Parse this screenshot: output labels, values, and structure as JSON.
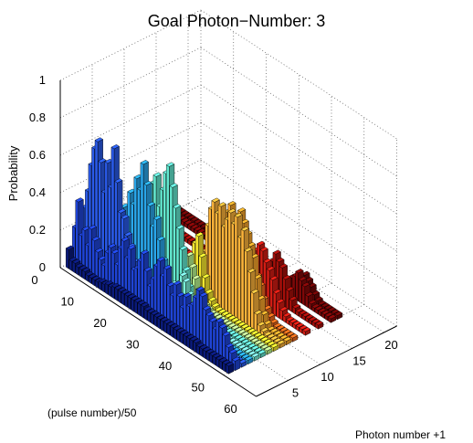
{
  "chart_data": {
    "type": "bar3d",
    "title": "Goal Photon−Number: 3",
    "xlabel": "(pulse number)/50",
    "ylabel": "Photon number +1",
    "zlabel": "Probability",
    "x_ticks": [
      "0",
      "10",
      "20",
      "30",
      "40",
      "50",
      "60"
    ],
    "y_ticks": [
      "5",
      "10",
      "15",
      "20"
    ],
    "z_ticks": [
      "0",
      "0.2",
      "0.4",
      "0.6",
      "0.8",
      "1"
    ],
    "xlim": [
      0,
      60
    ],
    "ylim": [
      0,
      22
    ],
    "zlim": [
      0,
      1
    ],
    "grid": true,
    "colormap": "jet",
    "series": [
      {
        "photon_number_plus_1": 1,
        "color": "#0a1a7a",
        "values": [
          0.1,
          0.05,
          0.05,
          0.04,
          0.04,
          0.04,
          0.03,
          0.03,
          0.03,
          0.03,
          0.04,
          0.04,
          0.05,
          0.05,
          0.06,
          0.06,
          0.06,
          0.06,
          0.06,
          0.06,
          0.06,
          0.06,
          0.06,
          0.06,
          0.05,
          0.05,
          0.05,
          0.05,
          0.05,
          0.05,
          0.05,
          0.05,
          0.05,
          0.05,
          0.05,
          0.05,
          0.05,
          0.05,
          0.05,
          0.05,
          0.04,
          0.04,
          0.04,
          0.04,
          0.04,
          0.04,
          0.04,
          0.04,
          0.04,
          0.04
        ]
      },
      {
        "photon_number_plus_1": 2,
        "color": "#1f44d6",
        "values": [
          0.2,
          0.35,
          0.18,
          0.22,
          0.15,
          0.25,
          0.2,
          0.15,
          0.12,
          0.1,
          0.18,
          0.22,
          0.2,
          0.15,
          0.25,
          0.3,
          0.22,
          0.28,
          0.18,
          0.2,
          0.25,
          0.3,
          0.22,
          0.15,
          0.2,
          0.28,
          0.32,
          0.25,
          0.3,
          0.22,
          0.18,
          0.25,
          0.2,
          0.15,
          0.22,
          0.18,
          0.2,
          0.25,
          0.3,
          0.28,
          0.22,
          0.2,
          0.18,
          0.15,
          0.2,
          0.18,
          0.15,
          0.1,
          0.08,
          0.05
        ]
      },
      {
        "photon_number_plus_1": 3,
        "color": "#2a5ae8",
        "values": [
          0.25,
          0.3,
          0.4,
          0.55,
          0.65,
          0.7,
          0.6,
          0.45,
          0.62,
          0.5,
          0.72,
          0.55,
          0.4,
          0.38,
          0.3,
          0.25,
          0.18,
          0.12,
          0.1,
          0.08,
          0.06,
          0.05,
          0.04,
          0.03,
          0.03,
          0.02,
          0.02,
          0.02,
          0.02,
          0.02,
          0.02,
          0.02,
          0.02,
          0.02,
          0.02,
          0.02,
          0.02,
          0.02,
          0.02,
          0.02,
          0.02,
          0.02,
          0.02,
          0.02,
          0.02,
          0.02,
          0.02,
          0.02,
          0.02,
          0.02
        ]
      },
      {
        "photon_number_plus_1": 4,
        "color": "#2aa6ea",
        "values": [
          0.02,
          0.02,
          0.03,
          0.05,
          0.08,
          0.1,
          0.12,
          0.18,
          0.2,
          0.25,
          0.3,
          0.4,
          0.35,
          0.5,
          0.45,
          0.6,
          0.55,
          0.7,
          0.6,
          0.5,
          0.4,
          0.45,
          0.35,
          0.25,
          0.15,
          0.1,
          0.05,
          0.03,
          0.02,
          0.02,
          0.02,
          0.02,
          0.02,
          0.02,
          0.02,
          0.02,
          0.02,
          0.02,
          0.02,
          0.02,
          0.02,
          0.02,
          0.02,
          0.02,
          0.02,
          0.02,
          0.02,
          0.02,
          0.02,
          0.02
        ]
      },
      {
        "photon_number_plus_1": 5,
        "color": "#7af0d8",
        "values": [
          0.02,
          0.02,
          0.02,
          0.02,
          0.02,
          0.02,
          0.02,
          0.02,
          0.02,
          0.02,
          0.02,
          0.02,
          0.02,
          0.02,
          0.02,
          0.02,
          0.02,
          0.02,
          0.02,
          0.02,
          0.03,
          0.04,
          0.05,
          0.08,
          0.12,
          0.1,
          0.15,
          0.2,
          0.18,
          0.12,
          0.08,
          0.05,
          0.03,
          0.02,
          0.02,
          0.02,
          0.02,
          0.02,
          0.02,
          0.02,
          0.02,
          0.02,
          0.02,
          0.02,
          0.02,
          0.02,
          0.02,
          0.02,
          0.02,
          0.02
        ]
      },
      {
        "photon_number_plus_1": 6,
        "color": "#63e8cf",
        "values": [
          0.02,
          0.02,
          0.02,
          0.02,
          0.02,
          0.02,
          0.02,
          0.02,
          0.02,
          0.02,
          0.03,
          0.05,
          0.1,
          0.2,
          0.35,
          0.5,
          0.55,
          0.6,
          0.45,
          0.55,
          0.65,
          0.7,
          0.6,
          0.5,
          0.4,
          0.3,
          0.2,
          0.12,
          0.05,
          0.03,
          0.02,
          0.02,
          0.02,
          0.02,
          0.02,
          0.02,
          0.02,
          0.02,
          0.02,
          0.02,
          0.02,
          0.02,
          0.02,
          0.02,
          0.02,
          0.02,
          0.02,
          0.02,
          0.02,
          0.02
        ]
      },
      {
        "photon_number_plus_1": 7,
        "color": "#b8f58f",
        "values": [
          0.02,
          0.02,
          0.02,
          0.02,
          0.02,
          0.02,
          0.02,
          0.02,
          0.02,
          0.02,
          0.02,
          0.02,
          0.02,
          0.02,
          0.02,
          0.02,
          0.02,
          0.02,
          0.02,
          0.02,
          0.03,
          0.05,
          0.08,
          0.12,
          0.2,
          0.25,
          0.2,
          0.15,
          0.1,
          0.06,
          0.04,
          0.03,
          0.02,
          0.02,
          0.02,
          0.02,
          0.02,
          0.02,
          0.02,
          0.02,
          0.02,
          0.02,
          0.02,
          0.02,
          0.02,
          0.02,
          0.02,
          0.02,
          0.02,
          0.02
        ]
      },
      {
        "photon_number_plus_1": 8,
        "color": "#f7e82e",
        "values": [
          0.02,
          0.02,
          0.02,
          0.02,
          0.02,
          0.02,
          0.02,
          0.02,
          0.02,
          0.02,
          0.02,
          0.02,
          0.02,
          0.02,
          0.02,
          0.02,
          0.02,
          0.02,
          0.02,
          0.02,
          0.02,
          0.03,
          0.05,
          0.1,
          0.2,
          0.3,
          0.35,
          0.25,
          0.15,
          0.08,
          0.05,
          0.03,
          0.02,
          0.02,
          0.02,
          0.02,
          0.02,
          0.02,
          0.02,
          0.02,
          0.02,
          0.02,
          0.02,
          0.02,
          0.02,
          0.02,
          0.02,
          0.02,
          0.02,
          0.02
        ]
      },
      {
        "photon_number_plus_1": 9,
        "color": "#fbb33a",
        "values": [
          0.02,
          0.02,
          0.02,
          0.02,
          0.02,
          0.02,
          0.02,
          0.02,
          0.02,
          0.02,
          0.02,
          0.02,
          0.02,
          0.02,
          0.02,
          0.02,
          0.02,
          0.02,
          0.02,
          0.02,
          0.02,
          0.02,
          0.02,
          0.03,
          0.05,
          0.1,
          0.25,
          0.4,
          0.5,
          0.55,
          0.5,
          0.55,
          0.45,
          0.5,
          0.55,
          0.5,
          0.55,
          0.45,
          0.5,
          0.4,
          0.3,
          0.2,
          0.1,
          0.05,
          0.03,
          0.02,
          0.02,
          0.02,
          0.02,
          0.02
        ]
      },
      {
        "photon_number_plus_1": 10,
        "color": "#f7a52b",
        "values": [
          0.02,
          0.02,
          0.02,
          0.02,
          0.02,
          0.02,
          0.02,
          0.02,
          0.02,
          0.02,
          0.02,
          0.02,
          0.02,
          0.02,
          0.02,
          0.02,
          0.02,
          0.02,
          0.02,
          0.02,
          0.02,
          0.02,
          0.02,
          0.02,
          0.03,
          0.05,
          0.1,
          0.2,
          0.3,
          0.4,
          0.45,
          0.5,
          0.55,
          0.5,
          0.45,
          0.55,
          0.5,
          0.45,
          0.4,
          0.35,
          0.25,
          0.15,
          0.08,
          0.04,
          0.02,
          0.02,
          0.02,
          0.02,
          0.02,
          0.02
        ]
      },
      {
        "photon_number_plus_1": 11,
        "color": "#ee6a1d",
        "values": [
          0.02,
          0.02,
          0.02,
          0.02,
          0.02,
          0.02,
          0.02,
          0.02,
          0.02,
          0.02,
          0.02,
          0.02,
          0.02,
          0.02,
          0.02,
          0.02,
          0.02,
          0.02,
          0.02,
          0.02,
          0.02,
          0.02,
          0.02,
          0.02,
          0.02,
          0.02,
          0.03,
          0.05,
          0.08,
          0.12,
          0.18,
          0.22,
          0.25,
          0.3,
          0.28,
          0.25,
          0.3,
          0.28,
          0.22,
          0.18,
          0.12,
          0.08,
          0.05,
          0.03,
          0.02,
          0.02,
          0.02,
          0.02,
          0.02,
          0.02
        ]
      },
      {
        "photon_number_plus_1": 13,
        "color": "#d21d14",
        "values": [
          0.02,
          0.02,
          0.02,
          0.02,
          0.02,
          0.02,
          0.02,
          0.02,
          0.02,
          0.02,
          0.02,
          0.02,
          0.02,
          0.02,
          0.02,
          0.02,
          0.02,
          0.02,
          0.02,
          0.02,
          0.02,
          0.02,
          0.02,
          0.02,
          0.02,
          0.02,
          0.02,
          0.02,
          0.03,
          0.05,
          0.08,
          0.12,
          0.18,
          0.22,
          0.28,
          0.32,
          0.3,
          0.25,
          0.22,
          0.18,
          0.12,
          0.08,
          0.05,
          0.03,
          0.02,
          0.02,
          0.02,
          0.02,
          0.02,
          0.02
        ]
      },
      {
        "photon_number_plus_1": 15,
        "color": "#a50f0a",
        "values": [
          0.02,
          0.02,
          0.02,
          0.02,
          0.02,
          0.02,
          0.02,
          0.02,
          0.02,
          0.02,
          0.02,
          0.02,
          0.02,
          0.02,
          0.02,
          0.02,
          0.02,
          0.02,
          0.02,
          0.02,
          0.02,
          0.02,
          0.02,
          0.02,
          0.02,
          0.02,
          0.02,
          0.02,
          0.02,
          0.02,
          0.03,
          0.05,
          0.08,
          0.12,
          0.15,
          0.2,
          0.25,
          0.22,
          0.2,
          0.15,
          0.1,
          0.06,
          0.03,
          0.02,
          0.02,
          0.02,
          0.02,
          0.02,
          0.02,
          0.02
        ]
      },
      {
        "photon_number_plus_1": 17,
        "color": "#7f0808",
        "values": [
          0.02,
          0.02,
          0.02,
          0.02,
          0.02,
          0.02,
          0.02,
          0.02,
          0.02,
          0.02,
          0.02,
          0.02,
          0.02,
          0.02,
          0.02,
          0.02,
          0.02,
          0.02,
          0.02,
          0.02,
          0.02,
          0.02,
          0.02,
          0.02,
          0.02,
          0.02,
          0.02,
          0.02,
          0.02,
          0.02,
          0.02,
          0.02,
          0.02,
          0.03,
          0.04,
          0.06,
          0.08,
          0.1,
          0.12,
          0.15,
          0.12,
          0.1,
          0.06,
          0.03,
          0.02,
          0.02,
          0.02,
          0.02,
          0.02,
          0.02
        ]
      },
      {
        "photon_number_plus_1": 18,
        "color": "#6e0606",
        "values": [
          0.02,
          0.02,
          0.02,
          0.02,
          0.02,
          0.02,
          0.02,
          0.02,
          0.02,
          0.02,
          0.02,
          0.02,
          0.02,
          0.02,
          0.02,
          0.02,
          0.02,
          0.02,
          0.02,
          0.02,
          0.02,
          0.02,
          0.02,
          0.02,
          0.02,
          0.02,
          0.02,
          0.02,
          0.02,
          0.02,
          0.02,
          0.02,
          0.02,
          0.02,
          0.03,
          0.04,
          0.06,
          0.08,
          0.1,
          0.12,
          0.1,
          0.08,
          0.05,
          0.03,
          0.02,
          0.02,
          0.02,
          0.02,
          0.02,
          0.02
        ]
      }
    ]
  }
}
